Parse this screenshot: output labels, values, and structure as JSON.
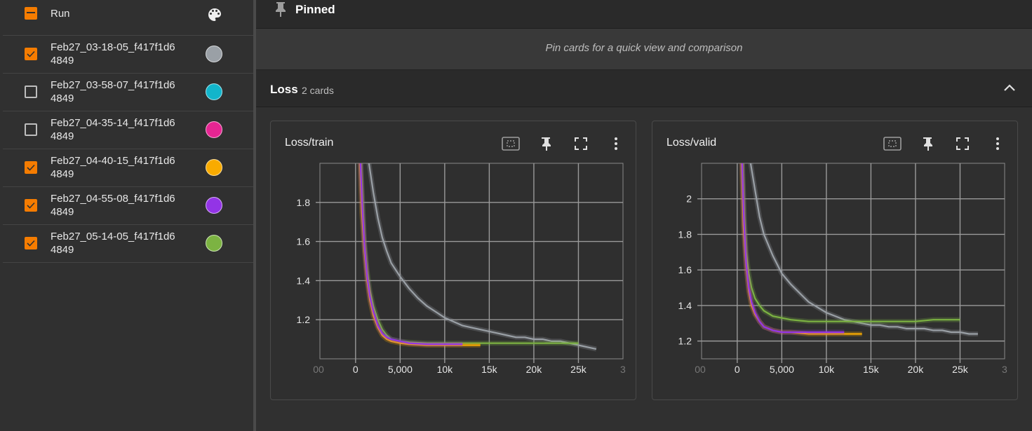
{
  "runs_header": {
    "label": "Run",
    "palette_icon": "palette-icon"
  },
  "runs": [
    {
      "line1": "Feb27_03-18-05_f417f1d6",
      "line2": "4849",
      "checked": true,
      "color": "#9aa0a6"
    },
    {
      "line1": "Feb27_03-58-07_f417f1d6",
      "line2": "4849",
      "checked": false,
      "color": "#12b5cb"
    },
    {
      "line1": "Feb27_04-35-14_f417f1d6",
      "line2": "4849",
      "checked": false,
      "color": "#e52592"
    },
    {
      "line1": "Feb27_04-40-15_f417f1d6",
      "line2": "4849",
      "checked": true,
      "color": "#f9ab00"
    },
    {
      "line1": "Feb27_04-55-08_f417f1d6",
      "line2": "4849",
      "checked": true,
      "color": "#9334e6"
    },
    {
      "line1": "Feb27_05-14-05_f417f1d6",
      "line2": "4849",
      "checked": true,
      "color": "#7cb342"
    }
  ],
  "pinned": {
    "title": "Pinned",
    "message": "Pin cards for a quick view and comparison"
  },
  "group": {
    "title": "Loss",
    "count": "2 cards"
  },
  "cards": [
    {
      "title": "Loss/train"
    },
    {
      "title": "Loss/valid"
    }
  ],
  "accent_color": "#f57c00",
  "chart_data": [
    {
      "type": "line",
      "title": "Loss/train",
      "x_ticks": [
        "5,000",
        "10k",
        "15k",
        "20k",
        "25k"
      ],
      "x_ticks_clipped": [
        "00",
        "0",
        "3"
      ],
      "y_ticks": [
        "1.8",
        "1.6",
        "1.4",
        "1.2"
      ],
      "xlim": [
        -4000,
        30000
      ],
      "ylim": [
        1.0,
        2.0
      ],
      "grid": true,
      "series": [
        {
          "color": "#9aa0a6",
          "points": [
            [
              1500,
              2.0
            ],
            [
              2000,
              1.85
            ],
            [
              2500,
              1.72
            ],
            [
              3000,
              1.62
            ],
            [
              3500,
              1.55
            ],
            [
              4000,
              1.49
            ],
            [
              5000,
              1.42
            ],
            [
              6000,
              1.36
            ],
            [
              7000,
              1.31
            ],
            [
              8000,
              1.27
            ],
            [
              9000,
              1.24
            ],
            [
              10000,
              1.21
            ],
            [
              11000,
              1.19
            ],
            [
              12000,
              1.17
            ],
            [
              13000,
              1.16
            ],
            [
              14000,
              1.15
            ],
            [
              15000,
              1.14
            ],
            [
              16000,
              1.13
            ],
            [
              17000,
              1.12
            ],
            [
              18000,
              1.11
            ],
            [
              19000,
              1.11
            ],
            [
              20000,
              1.1
            ],
            [
              21000,
              1.1
            ],
            [
              22000,
              1.09
            ],
            [
              23000,
              1.09
            ],
            [
              24000,
              1.08
            ],
            [
              25000,
              1.07
            ],
            [
              26000,
              1.06
            ],
            [
              27000,
              1.05
            ]
          ]
        },
        {
          "color": "#7cb342",
          "points": [
            [
              600,
              2.0
            ],
            [
              800,
              1.8
            ],
            [
              1000,
              1.6
            ],
            [
              1300,
              1.45
            ],
            [
              1600,
              1.35
            ],
            [
              2000,
              1.27
            ],
            [
              2500,
              1.2
            ],
            [
              3000,
              1.15
            ],
            [
              3500,
              1.12
            ],
            [
              4000,
              1.1
            ],
            [
              5000,
              1.09
            ],
            [
              6000,
              1.085
            ],
            [
              8000,
              1.08
            ],
            [
              10000,
              1.08
            ],
            [
              12000,
              1.08
            ],
            [
              14000,
              1.08
            ],
            [
              16000,
              1.08
            ],
            [
              18000,
              1.08
            ],
            [
              20000,
              1.08
            ],
            [
              22000,
              1.08
            ],
            [
              24000,
              1.08
            ],
            [
              25000,
              1.08
            ]
          ]
        },
        {
          "color": "#f9ab00",
          "points": [
            [
              500,
              2.0
            ],
            [
              700,
              1.75
            ],
            [
              1000,
              1.55
            ],
            [
              1300,
              1.4
            ],
            [
              1600,
              1.3
            ],
            [
              2000,
              1.22
            ],
            [
              2500,
              1.16
            ],
            [
              3000,
              1.12
            ],
            [
              3500,
              1.1
            ],
            [
              4000,
              1.09
            ],
            [
              5000,
              1.08
            ],
            [
              6000,
              1.075
            ],
            [
              8000,
              1.07
            ],
            [
              10000,
              1.07
            ],
            [
              12000,
              1.07
            ],
            [
              14000,
              1.07
            ]
          ]
        },
        {
          "color": "#9334e6",
          "points": [
            [
              550,
              2.0
            ],
            [
              750,
              1.78
            ],
            [
              1000,
              1.58
            ],
            [
              1300,
              1.42
            ],
            [
              1600,
              1.32
            ],
            [
              2000,
              1.24
            ],
            [
              2500,
              1.17
            ],
            [
              3000,
              1.13
            ],
            [
              3500,
              1.11
            ],
            [
              4000,
              1.1
            ],
            [
              5000,
              1.09
            ],
            [
              6000,
              1.08
            ],
            [
              8000,
              1.075
            ],
            [
              10000,
              1.075
            ],
            [
              12000,
              1.075
            ]
          ]
        }
      ]
    },
    {
      "type": "line",
      "title": "Loss/valid",
      "x_ticks": [
        "5,000",
        "10k",
        "15k",
        "20k",
        "25k"
      ],
      "x_ticks_clipped": [
        "00",
        "0",
        "3"
      ],
      "y_ticks": [
        "2",
        "1.8",
        "1.6",
        "1.4",
        "1.2"
      ],
      "xlim": [
        -4000,
        30000
      ],
      "ylim": [
        1.1,
        2.2
      ],
      "grid": true,
      "series": [
        {
          "color": "#9aa0a6",
          "points": [
            [
              1500,
              2.2
            ],
            [
              2000,
              2.05
            ],
            [
              2500,
              1.9
            ],
            [
              3000,
              1.8
            ],
            [
              4000,
              1.68
            ],
            [
              5000,
              1.58
            ],
            [
              6000,
              1.52
            ],
            [
              7000,
              1.47
            ],
            [
              8000,
              1.42
            ],
            [
              9000,
              1.39
            ],
            [
              10000,
              1.36
            ],
            [
              11000,
              1.34
            ],
            [
              12000,
              1.32
            ],
            [
              13000,
              1.31
            ],
            [
              14000,
              1.3
            ],
            [
              15000,
              1.29
            ],
            [
              16000,
              1.29
            ],
            [
              17000,
              1.28
            ],
            [
              18000,
              1.28
            ],
            [
              19000,
              1.27
            ],
            [
              20000,
              1.27
            ],
            [
              21000,
              1.27
            ],
            [
              22000,
              1.26
            ],
            [
              23000,
              1.26
            ],
            [
              24000,
              1.25
            ],
            [
              25000,
              1.25
            ],
            [
              26000,
              1.24
            ],
            [
              27000,
              1.24
            ]
          ]
        },
        {
          "color": "#7cb342",
          "points": [
            [
              600,
              2.2
            ],
            [
              800,
              1.9
            ],
            [
              1000,
              1.7
            ],
            [
              1300,
              1.58
            ],
            [
              1600,
              1.5
            ],
            [
              2000,
              1.44
            ],
            [
              2500,
              1.4
            ],
            [
              3000,
              1.37
            ],
            [
              4000,
              1.34
            ],
            [
              5000,
              1.33
            ],
            [
              6000,
              1.32
            ],
            [
              8000,
              1.31
            ],
            [
              10000,
              1.31
            ],
            [
              12000,
              1.31
            ],
            [
              14000,
              1.31
            ],
            [
              16000,
              1.31
            ],
            [
              18000,
              1.31
            ],
            [
              20000,
              1.31
            ],
            [
              22000,
              1.32
            ],
            [
              24000,
              1.32
            ],
            [
              25000,
              1.32
            ]
          ]
        },
        {
          "color": "#f9ab00",
          "points": [
            [
              500,
              2.2
            ],
            [
              700,
              1.85
            ],
            [
              1000,
              1.62
            ],
            [
              1300,
              1.48
            ],
            [
              1600,
              1.4
            ],
            [
              2000,
              1.35
            ],
            [
              2500,
              1.31
            ],
            [
              3000,
              1.28
            ],
            [
              4000,
              1.26
            ],
            [
              5000,
              1.25
            ],
            [
              6000,
              1.25
            ],
            [
              8000,
              1.24
            ],
            [
              10000,
              1.24
            ],
            [
              12000,
              1.24
            ],
            [
              14000,
              1.24
            ]
          ]
        },
        {
          "color": "#9334e6",
          "points": [
            [
              550,
              2.2
            ],
            [
              750,
              1.88
            ],
            [
              1000,
              1.64
            ],
            [
              1300,
              1.5
            ],
            [
              1600,
              1.42
            ],
            [
              2000,
              1.36
            ],
            [
              2500,
              1.31
            ],
            [
              3000,
              1.28
            ],
            [
              4000,
              1.26
            ],
            [
              5000,
              1.25
            ],
            [
              6000,
              1.25
            ],
            [
              8000,
              1.25
            ],
            [
              10000,
              1.25
            ],
            [
              12000,
              1.25
            ]
          ]
        }
      ]
    }
  ]
}
